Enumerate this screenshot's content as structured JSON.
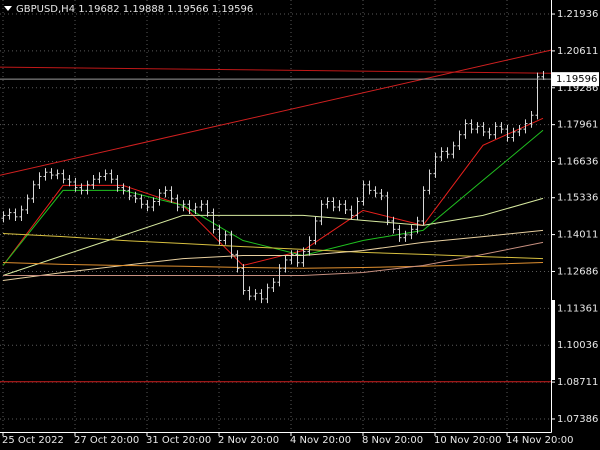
{
  "chart_data": {
    "type": "ohlc",
    "title": "GBPUSD,H4  1.19682 1.19888 1.19566 1.19596",
    "bar_color": "#d8d8d8",
    "open": [
      1.146,
      1.147,
      1.148,
      1.1465,
      1.149,
      1.153,
      1.158,
      1.161,
      1.1625,
      1.1615,
      1.162,
      1.16,
      1.159,
      1.157,
      1.156,
      1.158,
      1.16,
      1.161,
      1.162,
      1.16,
      1.157,
      1.156,
      1.154,
      1.153,
      1.151,
      1.15,
      1.152,
      1.155,
      1.156,
      1.153,
      1.15,
      1.151,
      1.149,
      1.15,
      1.151,
      1.148,
      1.142,
      1.138,
      1.14,
      1.133,
      1.128,
      1.12,
      1.118,
      1.119,
      1.117,
      1.121,
      1.123,
      1.128,
      1.131,
      1.133,
      1.13,
      1.134,
      1.138,
      1.145,
      1.151,
      1.152,
      1.15,
      1.151,
      1.149,
      1.147,
      1.152,
      1.158,
      1.156,
      1.155,
      1.154,
      1.145,
      1.142,
      1.139,
      1.14,
      1.142,
      1.145,
      1.156,
      1.162,
      1.168,
      1.17,
      1.169,
      1.172,
      1.176,
      1.18,
      1.178,
      1.179,
      1.177,
      1.176,
      1.179,
      1.178,
      1.175,
      1.177,
      1.178,
      1.18,
      1.183,
      1.19682
    ],
    "high": [
      1.1485,
      1.1495,
      1.1495,
      1.1505,
      1.1545,
      1.1595,
      1.1625,
      1.164,
      1.164,
      1.1635,
      1.1635,
      1.1615,
      1.1605,
      1.1585,
      1.1595,
      1.1615,
      1.1625,
      1.1635,
      1.1635,
      1.1615,
      1.1585,
      1.1575,
      1.1555,
      1.1545,
      1.1525,
      1.1535,
      1.1565,
      1.1575,
      1.1575,
      1.1545,
      1.1525,
      1.1525,
      1.1515,
      1.1525,
      1.1525,
      1.1495,
      1.1435,
      1.1415,
      1.1415,
      1.1345,
      1.1295,
      1.1215,
      1.1205,
      1.1205,
      1.1225,
      1.1245,
      1.1295,
      1.1325,
      1.1345,
      1.1345,
      1.1355,
      1.1395,
      1.1465,
      1.1525,
      1.1535,
      1.1535,
      1.1525,
      1.1525,
      1.1505,
      1.1535,
      1.1595,
      1.1595,
      1.1575,
      1.1565,
      1.1555,
      1.1465,
      1.1435,
      1.1415,
      1.1435,
      1.1465,
      1.1575,
      1.1635,
      1.1695,
      1.1715,
      1.1715,
      1.1735,
      1.1775,
      1.1815,
      1.1815,
      1.1805,
      1.1805,
      1.1785,
      1.1805,
      1.1805,
      1.1795,
      1.1785,
      1.1795,
      1.1815,
      1.1845,
      1.1983,
      1.19888
    ],
    "low": [
      1.1445,
      1.1455,
      1.145,
      1.145,
      1.1475,
      1.1515,
      1.1565,
      1.1595,
      1.16,
      1.16,
      1.1585,
      1.1575,
      1.1555,
      1.1545,
      1.1545,
      1.1565,
      1.1585,
      1.1595,
      1.1585,
      1.1555,
      1.1545,
      1.1525,
      1.1515,
      1.1495,
      1.1485,
      1.1485,
      1.1505,
      1.1535,
      1.1515,
      1.1485,
      1.1485,
      1.1475,
      1.1475,
      1.1485,
      1.1465,
      1.1405,
      1.1365,
      1.1365,
      1.1315,
      1.1265,
      1.1185,
      1.1165,
      1.1165,
      1.1155,
      1.1155,
      1.1195,
      1.1215,
      1.1265,
      1.1295,
      1.1285,
      1.1285,
      1.1325,
      1.1365,
      1.1435,
      1.1495,
      1.1485,
      1.1485,
      1.1475,
      1.1455,
      1.1455,
      1.1505,
      1.1545,
      1.1535,
      1.1525,
      1.1435,
      1.1405,
      1.1375,
      1.1375,
      1.1385,
      1.1405,
      1.1435,
      1.1545,
      1.1605,
      1.1665,
      1.1675,
      1.1675,
      1.1705,
      1.1745,
      1.1765,
      1.1765,
      1.1755,
      1.1745,
      1.1745,
      1.1765,
      1.1735,
      1.1735,
      1.1755,
      1.1765,
      1.1785,
      1.1815,
      1.19566
    ],
    "close": [
      1.147,
      1.148,
      1.1465,
      1.149,
      1.153,
      1.158,
      1.161,
      1.1625,
      1.1615,
      1.162,
      1.16,
      1.159,
      1.157,
      1.156,
      1.158,
      1.16,
      1.161,
      1.162,
      1.16,
      1.157,
      1.156,
      1.154,
      1.153,
      1.151,
      1.15,
      1.152,
      1.155,
      1.156,
      1.153,
      1.15,
      1.151,
      1.149,
      1.15,
      1.151,
      1.148,
      1.142,
      1.138,
      1.14,
      1.133,
      1.128,
      1.12,
      1.118,
      1.119,
      1.117,
      1.121,
      1.123,
      1.128,
      1.131,
      1.133,
      1.13,
      1.134,
      1.138,
      1.145,
      1.151,
      1.152,
      1.15,
      1.151,
      1.149,
      1.147,
      1.152,
      1.158,
      1.156,
      1.155,
      1.154,
      1.145,
      1.142,
      1.139,
      1.14,
      1.142,
      1.145,
      1.156,
      1.162,
      1.168,
      1.17,
      1.169,
      1.172,
      1.176,
      1.18,
      1.178,
      1.179,
      1.177,
      1.176,
      1.179,
      1.178,
      1.175,
      1.177,
      1.178,
      1.18,
      1.183,
      1.1968,
      1.19596
    ],
    "xlim": [
      -0.5,
      91.33
    ],
    "xticks": [
      {
        "value": 0,
        "label": "25 Oct 2022"
      },
      {
        "value": 12,
        "label": "27 Oct 20:00"
      },
      {
        "value": 24,
        "label": "31 Oct 20:00"
      },
      {
        "value": 36,
        "label": "2 Nov 20:00"
      },
      {
        "value": 48,
        "label": "4 Nov 20:00"
      },
      {
        "value": 60,
        "label": "8 Nov 20:00"
      },
      {
        "value": 72,
        "label": "10 Nov 20:00"
      },
      {
        "value": 84,
        "label": "14 Nov 20:00"
      }
    ],
    "ylim": [
      1.06918,
      1.2244
    ],
    "yticks": [
      1.21936,
      1.20611,
      1.19286,
      1.17961,
      1.16636,
      1.15336,
      1.14011,
      1.12686,
      1.11361,
      1.10036,
      1.08711,
      1.07386
    ],
    "grid": true,
    "series": [
      {
        "color": "#e8201c",
        "x": [
          0,
          10,
          20,
          30,
          40,
          50,
          60,
          70,
          80,
          90
        ],
        "values": [
          1.129,
          1.1578,
          1.1578,
          1.1506,
          1.129,
          1.1344,
          1.1488,
          1.1434,
          1.1722,
          1.1819
        ]
      },
      {
        "color": "#20c020",
        "x": [
          0,
          10,
          20,
          30,
          40,
          50,
          60,
          70,
          80,
          90
        ],
        "values": [
          1.129,
          1.156,
          1.156,
          1.1506,
          1.138,
          1.1326,
          1.138,
          1.1416,
          1.1596,
          1.1776
        ]
      },
      {
        "color": "#d8eaa0",
        "x": [
          0,
          10,
          20,
          30,
          40,
          50,
          60,
          70,
          80,
          90
        ],
        "values": [
          1.1254,
          1.1326,
          1.1398,
          1.147,
          1.147,
          1.147,
          1.1452,
          1.1434,
          1.147,
          1.1531
        ]
      },
      {
        "color": "#d8c040",
        "x": [
          0,
          10,
          20,
          30,
          40,
          50,
          60,
          70,
          80,
          90
        ],
        "values": [
          1.1405,
          1.1394,
          1.138,
          1.1369,
          1.1358,
          1.1348,
          1.1337,
          1.133,
          1.1322,
          1.1315
        ]
      },
      {
        "color": "#e8d0a0",
        "x": [
          0,
          10,
          20,
          30,
          40,
          50,
          60,
          70,
          80,
          90
        ],
        "values": [
          1.1236,
          1.1265,
          1.129,
          1.1315,
          1.1326,
          1.1326,
          1.1344,
          1.1373,
          1.1394,
          1.1416
        ]
      },
      {
        "color": "#e09030",
        "x": [
          0,
          10,
          20,
          30,
          40,
          50,
          60,
          70,
          80,
          90
        ],
        "values": [
          1.1301,
          1.1294,
          1.129,
          1.1287,
          1.1283,
          1.128,
          1.1283,
          1.1287,
          1.1294,
          1.1301
        ]
      },
      {
        "color": "#c89080",
        "x": [
          0,
          10,
          20,
          30,
          40,
          50,
          60,
          70,
          80,
          90
        ],
        "values": [
          1.1254,
          1.1254,
          1.1254,
          1.1254,
          1.1254,
          1.1254,
          1.1265,
          1.129,
          1.133,
          1.1373
        ]
      }
    ],
    "lines": [
      {
        "color": "#d02020",
        "x": [
          -0.5,
          91.33
        ],
        "values": [
          1.1614,
          1.2064
        ]
      },
      {
        "color": "#c01818",
        "x": [
          -0.5,
          91.33
        ],
        "values": [
          1.2003,
          1.1981
        ]
      },
      {
        "color": "#d02020",
        "x": [
          -0.5,
          91.33
        ],
        "values": [
          1.0872,
          1.0872
        ]
      }
    ],
    "price_line_color": "#9a9a9a"
  }
}
